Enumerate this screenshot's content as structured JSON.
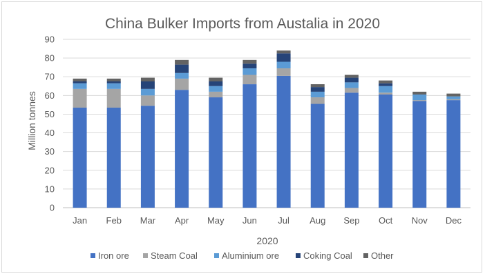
{
  "chart_data": {
    "type": "bar",
    "stacked": true,
    "title": "China Bulker Imports from Austalia in 2020",
    "xlabel": "2020",
    "ylabel": "Million tonnes",
    "ylim": [
      0,
      90
    ],
    "yticks": [
      0,
      10,
      20,
      30,
      40,
      50,
      60,
      70,
      80,
      90
    ],
    "grid": true,
    "legend_position": "bottom",
    "categories": [
      "Jan",
      "Feb",
      "Mar",
      "Apr",
      "May",
      "Jun",
      "Jul",
      "Aug",
      "Sep",
      "Oct",
      "Nov",
      "Dec"
    ],
    "series": [
      {
        "name": "Iron ore",
        "color": "#4472c4",
        "values": [
          53.5,
          53.5,
          54.5,
          63,
          59,
          66,
          70.5,
          55.5,
          61.5,
          60.5,
          57,
          57.5
        ]
      },
      {
        "name": "Steam Coal",
        "color": "#a5a5a5",
        "values": [
          10,
          10,
          5.5,
          6,
          3,
          5,
          4,
          3.5,
          2.5,
          1,
          0.5,
          0.5
        ]
      },
      {
        "name": "Aluminium ore",
        "color": "#5b9bd5",
        "values": [
          3,
          3,
          3.5,
          3,
          3,
          3.5,
          3.5,
          3,
          3,
          3.5,
          3,
          1.5
        ]
      },
      {
        "name": "Coking Coal",
        "color": "#264478",
        "values": [
          1,
          1,
          4,
          4.5,
          2.5,
          2.5,
          4.5,
          2.5,
          2.5,
          1.5,
          0,
          0
        ]
      },
      {
        "name": "Other",
        "color": "#636363",
        "values": [
          1.5,
          1.5,
          2,
          2.5,
          2,
          2,
          1.5,
          1.5,
          1.5,
          1.5,
          1.5,
          1.5
        ]
      }
    ]
  }
}
